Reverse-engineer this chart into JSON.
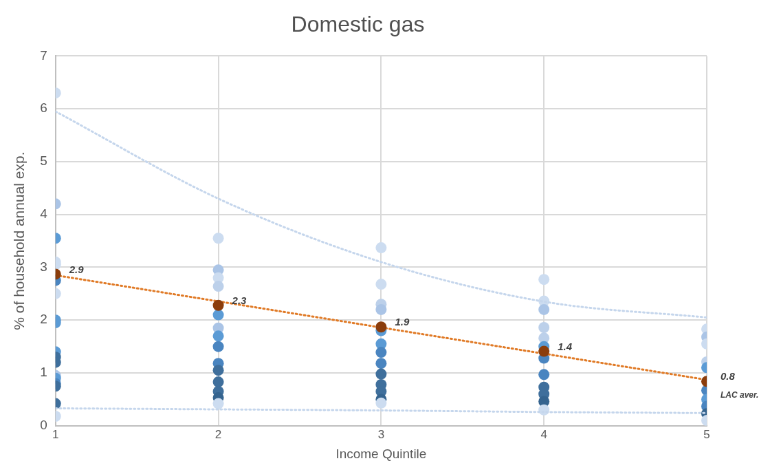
{
  "chart_data": {
    "type": "scatter",
    "title": "Domestic gas",
    "xlabel": "Income Quintile",
    "ylabel": "% of household annual exp.",
    "xlim": [
      1,
      5
    ],
    "xticks": [
      1,
      2,
      3,
      4,
      5
    ],
    "ylim": [
      0,
      7
    ],
    "yticks": [
      0,
      1,
      2,
      3,
      4,
      5,
      6,
      7
    ],
    "grid": true,
    "legend": false,
    "marker": "circle",
    "annotations": [
      {
        "text": "LAC aver.",
        "x": 5,
        "y": 0.84
      }
    ],
    "series": [
      {
        "x": [
          1,
          1,
          1,
          1,
          1,
          1,
          1,
          1,
          1,
          1,
          1,
          1,
          1,
          1,
          1,
          1,
          1,
          1,
          2,
          2,
          2,
          2,
          2,
          2,
          2,
          2,
          2,
          2,
          2,
          2,
          2,
          2,
          3,
          3,
          3,
          3,
          3,
          3,
          3,
          3,
          3,
          3,
          3,
          3,
          3,
          4,
          4,
          4,
          4,
          4,
          4,
          4,
          4,
          4,
          4,
          4,
          4,
          5,
          5,
          5,
          5,
          5,
          5,
          5,
          5,
          5,
          5
        ],
        "values": [
          6.3,
          4.2,
          3.55,
          3.1,
          3.05,
          2.75,
          2.5,
          2.0,
          1.95,
          1.4,
          1.3,
          1.2,
          0.95,
          0.9,
          0.8,
          0.75,
          0.42,
          0.18,
          3.55,
          2.95,
          2.8,
          2.64,
          2.1,
          1.85,
          1.7,
          1.5,
          1.18,
          1.05,
          0.83,
          0.65,
          0.53,
          0.42,
          3.37,
          2.68,
          2.3,
          2.2,
          1.8,
          1.55,
          1.39,
          1.18,
          0.98,
          0.78,
          0.65,
          0.5,
          0.43,
          2.77,
          2.36,
          2.2,
          1.86,
          1.66,
          1.5,
          1.28,
          0.97,
          0.73,
          0.6,
          0.46,
          0.3,
          1.83,
          1.68,
          1.55,
          1.21,
          1.1,
          0.67,
          0.5,
          0.37,
          0.23,
          0.1
        ],
        "colors": [
          "#ccdcf0",
          "#aac4e6",
          "#5b9bd5",
          "#ccdcf0",
          "#ccdcf0",
          "#4a85c0",
          "#ccdcf0",
          "#5b9bd5",
          "#5b9bd5",
          "#5b9bd5",
          "#3f6f9c",
          "#3f6f9c",
          "#aac4e6",
          "#5b9bd5",
          "#4a85c0",
          "#3f6f9c",
          "#3f6f9c",
          "#ccdcf0",
          "#ccdcf0",
          "#aac4e6",
          "#ccdcf0",
          "#bcd0ea",
          "#5b9bd5",
          "#aac4e6",
          "#5b9bd5",
          "#4a85c0",
          "#4a85c0",
          "#3f6f9c",
          "#3f6f9c",
          "#3f6f9c",
          "#35648f",
          "#ccdcf0",
          "#ccdcf0",
          "#ccdcf0",
          "#bcd0ea",
          "#aac4e6",
          "#5b9bd5",
          "#5b9bd5",
          "#4a85c0",
          "#4a85c0",
          "#3f6f9c",
          "#3f6f9c",
          "#3f6f9c",
          "#35648f",
          "#ccdcf0",
          "#ccdcf0",
          "#ccdcf0",
          "#aac4e6",
          "#bcd0ea",
          "#bcd0ea",
          "#5b9bd5",
          "#4a85c0",
          "#4a85c0",
          "#3f6f9c",
          "#3f6f9c",
          "#35648f",
          "#ccdcf0",
          "#ccdcf0",
          "#aac4e6",
          "#ccdcf0",
          "#bcd0ea",
          "#5b9bd5",
          "#4a85c0",
          "#5b9bd5",
          "#4a85c0",
          "#35648f",
          "#ccdcf0"
        ]
      },
      {
        "type": "line",
        "x": [
          1,
          2,
          3,
          4,
          5
        ],
        "values": [
          5.95,
          4.3,
          3.1,
          2.35,
          2.05
        ],
        "color": "#c5d6ec",
        "line_style": "dotted",
        "marker": "none"
      },
      {
        "type": "line",
        "x": [
          1,
          2,
          3,
          4,
          5
        ],
        "values": [
          0.33,
          0.31,
          0.29,
          0.26,
          0.24
        ],
        "color": "#c5d6ec",
        "line_style": "dotted",
        "marker": "none"
      },
      {
        "type": "line",
        "x": [
          1,
          5
        ],
        "values": [
          2.85,
          0.87
        ],
        "color": "#e07a26",
        "line_style": "dotted",
        "marker": "none"
      },
      {
        "x": [
          1,
          2,
          3,
          4,
          5
        ],
        "values": [
          2.87,
          2.28,
          1.87,
          1.41,
          0.84
        ],
        "color": "#8b3d0c",
        "value_labels": [
          "2.9",
          "2.3",
          "1.9",
          "1.4",
          "0.8"
        ]
      }
    ]
  }
}
